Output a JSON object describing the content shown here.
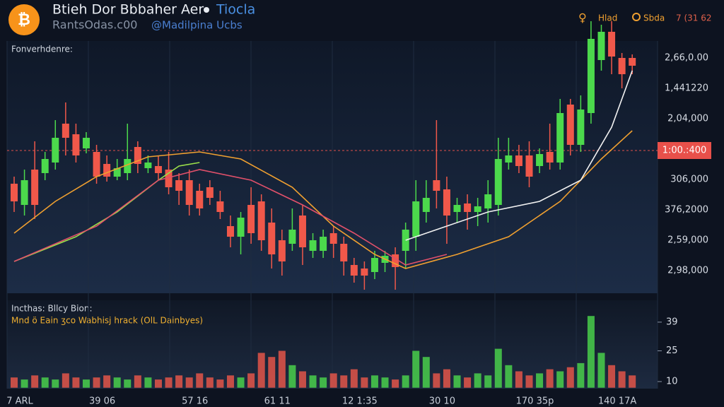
{
  "header": {
    "title": "Btieh Dor Bbbaher Aer",
    "badge": "Tiocla",
    "subtitle": "RantsOdas.c00",
    "handle": "@Madilpina Ucbs",
    "tools": [
      "Hlad",
      "Sbda",
      "7 (31 62"
    ]
  },
  "chart_data": [
    {
      "type": "candlestick",
      "label": "Fonverhdenre:",
      "up_color": "#4cd94c",
      "down_color": "#f0584a",
      "categories": [
        "7 ARL",
        null,
        null,
        null,
        null,
        null,
        null,
        null,
        "39 06",
        null,
        null,
        null,
        null,
        null,
        null,
        null,
        null,
        "57 16",
        null,
        null,
        null,
        null,
        null,
        null,
        null,
        "61 11",
        null,
        null,
        null,
        null,
        null,
        null,
        null,
        "12 1:35",
        null,
        null,
        null,
        null,
        null,
        null,
        null,
        "30 10",
        null,
        null,
        null,
        null,
        null,
        null,
        null,
        null,
        "170 35p",
        null,
        null,
        null,
        null,
        null,
        null,
        null,
        "140 17A",
        null,
        null
      ],
      "open": [
        155,
        125,
        175,
        170,
        185,
        240,
        225,
        205,
        200,
        183,
        165,
        170,
        207,
        177,
        180,
        175,
        160,
        160,
        145,
        150,
        130,
        95,
        80,
        125,
        130,
        100,
        75,
        70,
        110,
        60,
        60,
        85,
        70,
        40,
        35,
        30,
        43,
        55,
        60,
        80,
        115,
        160,
        147,
        115,
        127,
        115,
        120,
        125,
        185,
        195,
        195,
        180,
        200,
        185,
        267,
        210,
        255,
        330,
        370,
        333,
        333
      ],
      "high": [
        165,
        175,
        215,
        200,
        245,
        270,
        240,
        228,
        210,
        195,
        190,
        240,
        215,
        195,
        195,
        200,
        170,
        175,
        155,
        160,
        145,
        110,
        115,
        150,
        140,
        120,
        90,
        120,
        125,
        85,
        90,
        95,
        80,
        50,
        45,
        60,
        60,
        65,
        100,
        160,
        160,
        245,
        165,
        135,
        140,
        135,
        160,
        220,
        220,
        210,
        215,
        205,
        240,
        275,
        275,
        280,
        385,
        380,
        385,
        340,
        338
      ],
      "low": [
        115,
        110,
        105,
        160,
        175,
        195,
        185,
        198,
        155,
        158,
        160,
        160,
        170,
        170,
        160,
        140,
        125,
        110,
        110,
        125,
        105,
        65,
        55,
        70,
        60,
        35,
        25,
        60,
        40,
        50,
        50,
        50,
        25,
        15,
        5,
        20,
        30,
        5,
        35,
        60,
        100,
        120,
        70,
        100,
        90,
        95,
        100,
        110,
        175,
        170,
        150,
        170,
        175,
        175,
        195,
        200,
        240,
        315,
        310,
        290,
        310
      ],
      "close": [
        130,
        160,
        125,
        190,
        220,
        220,
        195,
        220,
        165,
        165,
        177,
        190,
        183,
        185,
        170,
        150,
        145,
        125,
        120,
        135,
        115,
        80,
        107,
        85,
        75,
        55,
        45,
        90,
        65,
        75,
        80,
        70,
        45,
        25,
        25,
        50,
        53,
        37,
        90,
        130,
        135,
        145,
        110,
        125,
        115,
        123,
        140,
        190,
        195,
        180,
        165,
        197,
        185,
        255,
        210,
        260,
        360,
        370,
        335,
        310,
        322
      ],
      "ylim": [
        0,
        385
      ],
      "price_scale_labels": [
        "2,66,0.00",
        "1,441220",
        "2,04,000",
        "306,000",
        "376,2000",
        "2,59,000",
        "2,98,000"
      ],
      "price_line": 202,
      "price_line_label": "1:00.:400",
      "overlays": [
        {
          "color": "#f0a030",
          "x": [
            0,
            4,
            8,
            13,
            18,
            22,
            27,
            31,
            35,
            38,
            43,
            48,
            53,
            57,
            60
          ],
          "values": [
            85,
            130,
            165,
            193,
            200,
            190,
            150,
            95,
            55,
            35,
            55,
            80,
            130,
            190,
            230
          ]
        },
        {
          "color": "#9be04a",
          "x": [
            0,
            6,
            10,
            14,
            16,
            18
          ],
          "values": [
            45,
            80,
            115,
            160,
            180,
            185
          ]
        },
        {
          "color": "#e0506a",
          "x": [
            0,
            8,
            14,
            18,
            23,
            28,
            33,
            38,
            42
          ],
          "values": [
            45,
            95,
            160,
            175,
            160,
            125,
            85,
            40,
            55
          ]
        },
        {
          "color": "#f2f2f2",
          "x": [
            38,
            42,
            46,
            51,
            55,
            58,
            60
          ],
          "values": [
            75,
            95,
            115,
            130,
            160,
            235,
            315
          ]
        }
      ]
    },
    {
      "type": "bar",
      "label": "Incthas: Bllcy Bion:",
      "legend": "Mnd ö Eain ʒco Wabhisj hrack (OlL Dainbyes)",
      "values": [
        12,
        11,
        13,
        12,
        11,
        14,
        12,
        11,
        12,
        13,
        12,
        11,
        13,
        12,
        11,
        12,
        13,
        12,
        14,
        12,
        11,
        13,
        12,
        14,
        24,
        22,
        25,
        18,
        15,
        13,
        12,
        14,
        13,
        16,
        12,
        13,
        12,
        11,
        13,
        25,
        22,
        14,
        16,
        13,
        12,
        14,
        13,
        26,
        18,
        15,
        13,
        14,
        16,
        15,
        17,
        19,
        42,
        24,
        18,
        15,
        13
      ],
      "ylim": [
        7,
        44
      ],
      "yticks": [
        10,
        25,
        39
      ]
    }
  ]
}
